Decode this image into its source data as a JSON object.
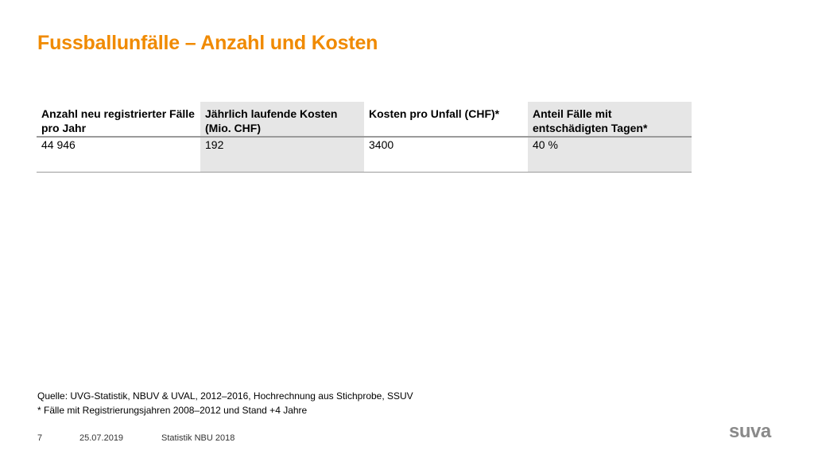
{
  "title": "Fussballunfälle – Anzahl und Kosten",
  "table": {
    "headers": [
      "Anzahl neu registrierter Fälle pro Jahr",
      "Jährlich laufende Kosten (Mio. CHF)",
      "Kosten pro Unfall (CHF)*",
      "Anteil Fälle mit entschädigten Tagen*"
    ],
    "row": [
      "44 946",
      "192",
      "3400",
      "40 %"
    ]
  },
  "notes": {
    "source": "Quelle: UVG-Statistik, NBUV & UVAL, 2012–2016, Hochrechnung aus Stichprobe, SSUV",
    "footnote": "* Fälle mit Registrierungsjahren 2008–2012 und Stand +4 Jahre"
  },
  "footer": {
    "page_number": "7",
    "date": "25.07.2019",
    "label": "Statistik NBU 2018"
  },
  "logo": "suva",
  "colors": {
    "title": "#f08a00",
    "shade": "#e6e6e6",
    "logo": "#8a8a8a"
  }
}
